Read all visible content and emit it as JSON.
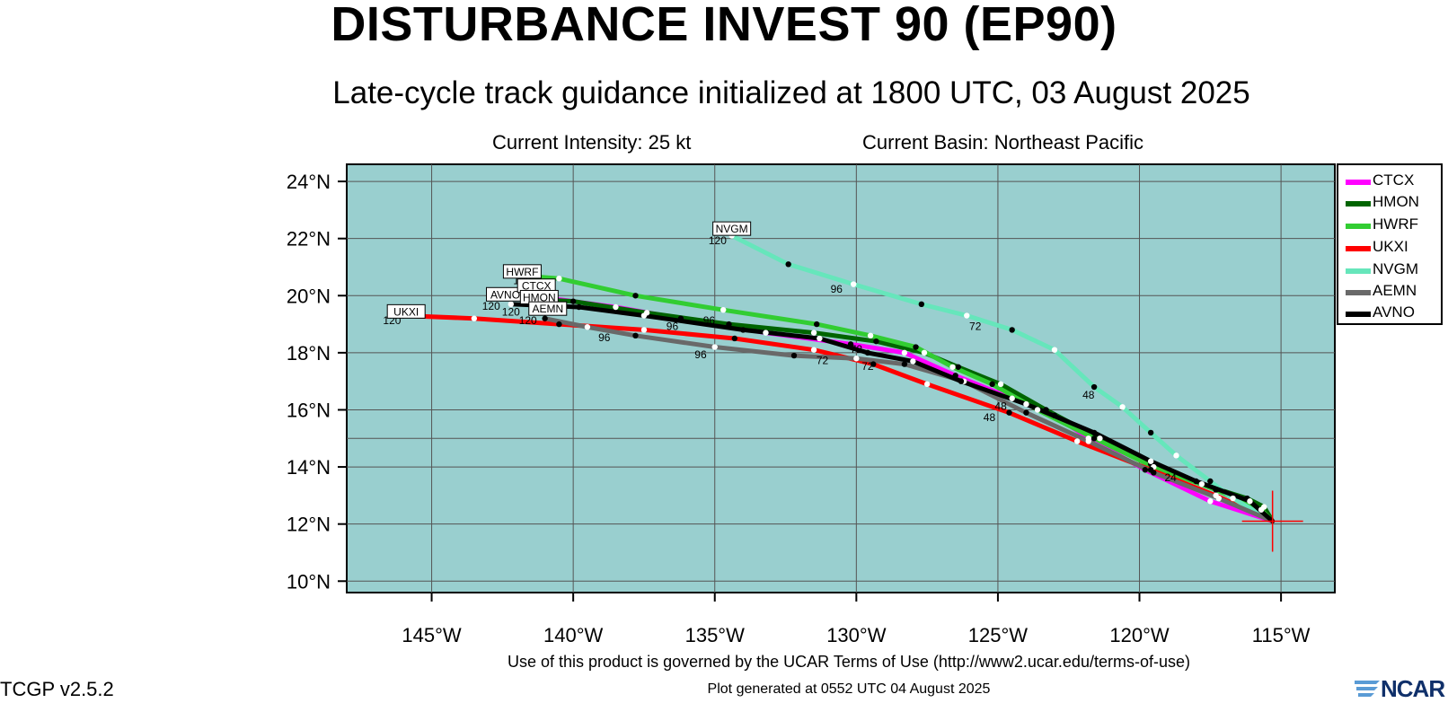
{
  "header": {
    "title": "DISTURBANCE INVEST 90 (EP90)",
    "subtitle": "Late-cycle track guidance initialized at 1800 UTC, 03 August 2025",
    "intensity": "Current Intensity: 25 kt",
    "basin": "Current Basin: Northeast Pacific"
  },
  "map": {
    "extent": {
      "lon": [
        -148,
        -113.1
      ],
      "lat": [
        9.6,
        24.6
      ]
    },
    "ocean_color": "#99cfcf",
    "grid_color": "#555555",
    "lat_ticks": [
      "24°N",
      "22°N",
      "20°N",
      "18°N",
      "16°N",
      "14°N",
      "12°N",
      "10°N"
    ],
    "lon_ticks": [
      "145°W",
      "140°W",
      "135°W",
      "130°W",
      "125°W",
      "120°W",
      "115°W"
    ],
    "current_position": {
      "lon": -115.3,
      "lat": 12.1
    }
  },
  "chart_data": {
    "type": "scatter",
    "series": [
      {
        "name": "CTCX",
        "color": "#ff00ff",
        "points": [
          [
            -115.3,
            12.1
          ],
          [
            -117.5,
            12.8
          ],
          [
            -119.8,
            13.9
          ],
          [
            -121.8,
            15.0
          ],
          [
            -123.0,
            15.8
          ],
          [
            -124.5,
            16.4
          ],
          [
            -126.5,
            17.2
          ],
          [
            -128.3,
            18.0
          ],
          [
            -130.2,
            18.3
          ],
          [
            -133.2,
            18.7
          ],
          [
            -136.2,
            19.2
          ],
          [
            -138.5,
            19.6
          ],
          [
            -141.5,
            20.0
          ]
        ]
      },
      {
        "name": "HMON",
        "color": "#006400",
        "points": [
          [
            -115.3,
            12.1
          ],
          [
            -115.6,
            12.6
          ],
          [
            -116.2,
            12.9
          ],
          [
            -117.8,
            13.4
          ],
          [
            -119.6,
            14.1
          ],
          [
            -121.4,
            15.0
          ],
          [
            -123.3,
            16.0
          ],
          [
            -124.9,
            16.9
          ],
          [
            -126.4,
            17.5
          ],
          [
            -127.6,
            18.0
          ],
          [
            -129.3,
            18.4
          ],
          [
            -131.5,
            18.7
          ],
          [
            -134.5,
            19.0
          ],
          [
            -137.4,
            19.4
          ],
          [
            -140.0,
            19.8
          ],
          [
            -141.8,
            19.9
          ]
        ]
      },
      {
        "name": "HWRF",
        "color": "#32cd32",
        "points": [
          [
            -115.3,
            12.1
          ],
          [
            -115.7,
            12.5
          ],
          [
            -117.3,
            13.2
          ],
          [
            -119.5,
            14.0
          ],
          [
            -121.6,
            15.0
          ],
          [
            -123.6,
            16.0
          ],
          [
            -125.2,
            16.9
          ],
          [
            -126.6,
            17.5
          ],
          [
            -127.9,
            18.2
          ],
          [
            -129.5,
            18.6
          ],
          [
            -131.4,
            19.0
          ],
          [
            -134.7,
            19.5
          ],
          [
            -137.8,
            20.0
          ],
          [
            -140.5,
            20.6
          ],
          [
            -141.8,
            20.7
          ]
        ]
      },
      {
        "name": "UKXI",
        "color": "#ff0000",
        "points": [
          [
            -115.3,
            12.1
          ],
          [
            -117.3,
            13.0
          ],
          [
            -119.6,
            13.9
          ],
          [
            -122.2,
            14.9
          ],
          [
            -124.6,
            15.9
          ],
          [
            -127.5,
            16.9
          ],
          [
            -129.4,
            17.6
          ],
          [
            -131.5,
            18.1
          ],
          [
            -134.3,
            18.5
          ],
          [
            -137.5,
            18.8
          ],
          [
            -140.5,
            19.0
          ],
          [
            -143.5,
            19.2
          ],
          [
            -146.0,
            19.3
          ]
        ]
      },
      {
        "name": "NVGM",
        "color": "#66e6bb",
        "points": [
          [
            -115.3,
            12.1
          ],
          [
            -116.7,
            12.9
          ],
          [
            -117.5,
            13.5
          ],
          [
            -118.7,
            14.4
          ],
          [
            -119.6,
            15.2
          ],
          [
            -120.6,
            16.1
          ],
          [
            -121.6,
            16.8
          ],
          [
            -123.0,
            18.1
          ],
          [
            -124.5,
            18.8
          ],
          [
            -126.1,
            19.3
          ],
          [
            -127.7,
            19.7
          ],
          [
            -130.1,
            20.4
          ],
          [
            -132.4,
            21.1
          ],
          [
            -134.4,
            22.1
          ]
        ]
      },
      {
        "name": "AEMN",
        "color": "#696969",
        "points": [
          [
            -115.3,
            12.1
          ],
          [
            -117.2,
            12.9
          ],
          [
            -119.5,
            13.8
          ],
          [
            -121.8,
            14.9
          ],
          [
            -124.0,
            15.9
          ],
          [
            -126.2,
            17.0
          ],
          [
            -128.3,
            17.6
          ],
          [
            -130.0,
            17.8
          ],
          [
            -132.2,
            17.9
          ],
          [
            -135.0,
            18.2
          ],
          [
            -137.8,
            18.6
          ],
          [
            -139.5,
            18.9
          ],
          [
            -141.0,
            19.2
          ]
        ]
      },
      {
        "name": "AVNO",
        "color": "#000000",
        "points": [
          [
            -115.3,
            12.1
          ],
          [
            -116.1,
            12.8
          ],
          [
            -118.0,
            13.5
          ],
          [
            -119.6,
            14.2
          ],
          [
            -121.6,
            15.2
          ],
          [
            -124.0,
            16.2
          ],
          [
            -126.3,
            17.0
          ],
          [
            -128.0,
            17.7
          ],
          [
            -129.6,
            18.0
          ],
          [
            -131.3,
            18.5
          ],
          [
            -134.0,
            18.8
          ],
          [
            -137.5,
            19.3
          ],
          [
            -139.8,
            19.6
          ],
          [
            -142.2,
            19.7
          ]
        ]
      }
    ],
    "hour_labels": [
      {
        "text": "120",
        "lon": -146.4,
        "lat": 19.0
      },
      {
        "text": "120",
        "lon": -142.9,
        "lat": 19.5
      },
      {
        "text": "120",
        "lon": -141.8,
        "lat": 20.4
      },
      {
        "text": "120",
        "lon": -142.2,
        "lat": 19.3
      },
      {
        "text": "120",
        "lon": -141.6,
        "lat": 19.0
      },
      {
        "text": "120",
        "lon": -134.9,
        "lat": 21.8
      },
      {
        "text": "96",
        "lon": -138.9,
        "lat": 18.4
      },
      {
        "text": "96",
        "lon": -135.5,
        "lat": 17.8
      },
      {
        "text": "96",
        "lon": -130.7,
        "lat": 20.1
      },
      {
        "text": "96",
        "lon": -136.5,
        "lat": 18.8
      },
      {
        "text": "96",
        "lon": -135.2,
        "lat": 19.0
      },
      {
        "text": "72",
        "lon": -131.2,
        "lat": 17.6
      },
      {
        "text": "72",
        "lon": -129.6,
        "lat": 17.4
      },
      {
        "text": "72",
        "lon": -125.8,
        "lat": 18.8
      },
      {
        "text": "72",
        "lon": -130.0,
        "lat": 18.0
      },
      {
        "text": "48",
        "lon": -125.3,
        "lat": 15.6
      },
      {
        "text": "48",
        "lon": -121.8,
        "lat": 16.4
      },
      {
        "text": "48",
        "lon": -124.9,
        "lat": 16.0
      },
      {
        "text": "24",
        "lon": -118.9,
        "lat": 13.5
      }
    ],
    "model_tags": [
      {
        "text": "UKXI",
        "lon": -145.9,
        "lat": 19.4
      },
      {
        "text": "HWRF",
        "lon": -141.8,
        "lat": 20.8
      },
      {
        "text": "AVNO",
        "lon": -142.4,
        "lat": 20.0
      },
      {
        "text": "CTCX",
        "lon": -141.3,
        "lat": 20.3
      },
      {
        "text": "HMON",
        "lon": -141.2,
        "lat": 19.9
      },
      {
        "text": "AEMN",
        "lon": -140.9,
        "lat": 19.5
      },
      {
        "text": "NVGM",
        "lon": -134.4,
        "lat": 22.3
      }
    ]
  },
  "legend": {
    "position": "right",
    "items": [
      {
        "label": "CTCX",
        "color": "#ff00ff"
      },
      {
        "label": "HMON",
        "color": "#006400"
      },
      {
        "label": "HWRF",
        "color": "#32cd32"
      },
      {
        "label": "UKXI",
        "color": "#ff0000"
      },
      {
        "label": "NVGM",
        "color": "#66e6bb"
      },
      {
        "label": "AEMN",
        "color": "#696969"
      },
      {
        "label": "AVNO",
        "color": "#000000"
      }
    ]
  },
  "footer": {
    "terms": "Use of this product is governed by the UCAR Terms of Use (http://www2.ucar.edu/terms-of-use)",
    "version": "TCGP v2.5.2",
    "generated": "Plot generated at 0552 UTC   04 August 2025",
    "logo": "NCAR"
  }
}
